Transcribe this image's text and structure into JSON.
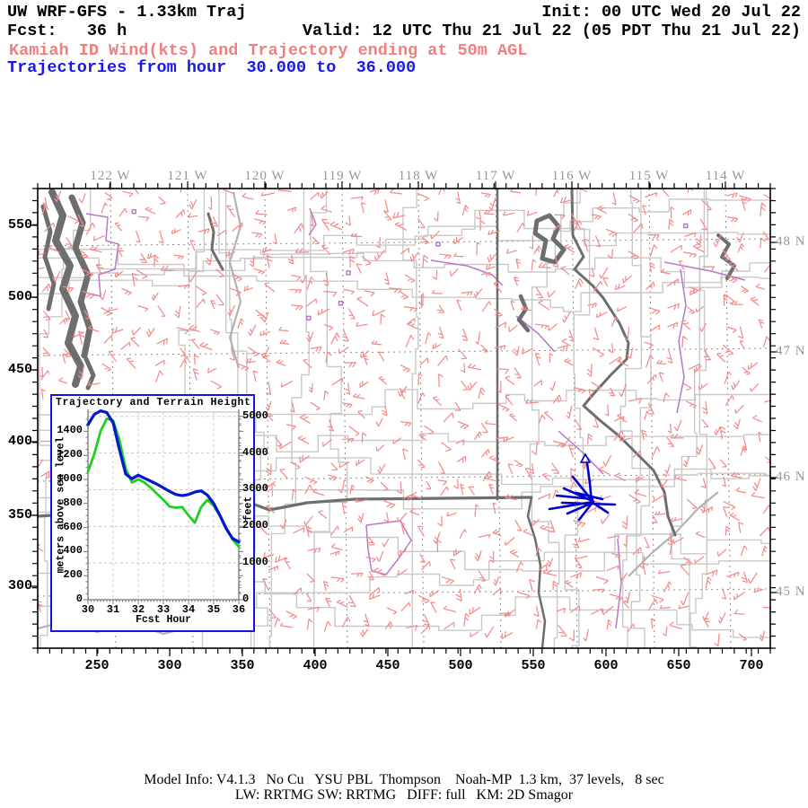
{
  "header": {
    "title_left": "UW WRF-GFS - 1.33km Traj",
    "init": "Init: 00 UTC Wed 20 Jul 22",
    "fcst": "Fcst:   36 h",
    "valid": "Valid: 12 UTC Thu 21 Jul 22 (05 PDT Thu 21 Jul 22)",
    "subtitle_red": "Kamiah ID Wind(kts) and Trajectory ending at 50m AGL",
    "subtitle_blue": "Trajectories from hour  30.000 to  36.000",
    "colors": {
      "red": "#F08080",
      "blue": "#1A1AE6"
    }
  },
  "footer": {
    "line1": "Model Info: V4.1.3   No Cu   YSU PBL  Thompson    Noah-MP  1.3 km,  37 levels,   8 sec",
    "line2": "LW: RRTMG SW: RRTMG   DIFF: full   KM: 2D Smagor"
  },
  "map": {
    "lon_labels": [
      "122 W",
      "121 W",
      "120 W",
      "119 W",
      "118 W",
      "117 W",
      "116 W",
      "115 W",
      "114 W"
    ],
    "lat_labels": [
      "48 N",
      "47 N",
      "46 N",
      "45 N"
    ],
    "x_axis_labels": [
      "250",
      "300",
      "350",
      "400",
      "450",
      "500",
      "550",
      "600",
      "650",
      "700"
    ],
    "y_axis_labels": [
      "550",
      "500",
      "450",
      "400",
      "350",
      "300"
    ],
    "colors": {
      "wind_barbs": "#F28C8C",
      "county": "#C9C9C9",
      "state_dark": "#6E6E6E",
      "purple": "#B878C8",
      "graticule": "#8E8E8E",
      "trajectory": "#0000CC",
      "border": "#000000"
    },
    "trajectory_marker": [
      652,
      511
    ],
    "trajectories": [
      [
        [
          654,
          516
        ],
        [
          657,
          538
        ],
        [
          659,
          560
        ]
      ],
      [
        [
          660,
          558
        ],
        [
          638,
          531
        ]
      ],
      [
        [
          660,
          558
        ],
        [
          628,
          544
        ]
      ],
      [
        [
          660,
          556
        ],
        [
          620,
          552
        ]
      ],
      [
        [
          661,
          559
        ],
        [
          612,
          567
        ]
      ],
      [
        [
          660,
          560
        ],
        [
          632,
          572
        ]
      ],
      [
        [
          659,
          561
        ],
        [
          645,
          579
        ]
      ],
      [
        [
          659,
          559
        ],
        [
          677,
          571
        ]
      ],
      [
        [
          626,
          560
        ],
        [
          685,
          562
        ]
      ],
      [
        [
          642,
          549
        ],
        [
          671,
          556
        ]
      ]
    ]
  },
  "chart_data": {
    "type": "line",
    "title": "Trajectory and Terrain Height",
    "xlabel": "Fcst Hour",
    "ylabel_left": "meters above sea level",
    "ylabel_right": "feet",
    "x": [
      30,
      30.25,
      30.5,
      30.75,
      31,
      31.25,
      31.5,
      31.75,
      32,
      32.25,
      32.5,
      32.75,
      33,
      33.25,
      33.5,
      33.75,
      34,
      34.25,
      34.5,
      34.75,
      35,
      35.25,
      35.5,
      35.75,
      36
    ],
    "series": [
      {
        "name": "terrain-height-m",
        "color": "#1BD11B",
        "values": [
          1065,
          1210,
          1400,
          1505,
          1490,
          1330,
          1090,
          975,
          1000,
          975,
          930,
          880,
          830,
          775,
          765,
          770,
          700,
          640,
          770,
          830,
          780,
          700,
          600,
          500,
          440
        ]
      },
      {
        "name": "trajectory-height-m",
        "color": "#0016D0",
        "values": [
          1455,
          1540,
          1570,
          1555,
          1470,
          1250,
          1045,
          1005,
          1035,
          1010,
          985,
          960,
          930,
          900,
          875,
          865,
          875,
          895,
          905,
          870,
          800,
          700,
          590,
          510,
          480
        ]
      }
    ],
    "xticks": [
      30,
      31,
      32,
      33,
      34,
      35,
      36
    ],
    "yticks_m": [
      0,
      200,
      400,
      600,
      800,
      1000,
      1200,
      1400
    ],
    "yticks_ft": [
      0,
      1000,
      2000,
      3000,
      4000,
      5000
    ],
    "xlim": [
      30,
      36
    ],
    "ylim_m": [
      0,
      1600
    ],
    "grid": "dashed",
    "legend": "none"
  }
}
